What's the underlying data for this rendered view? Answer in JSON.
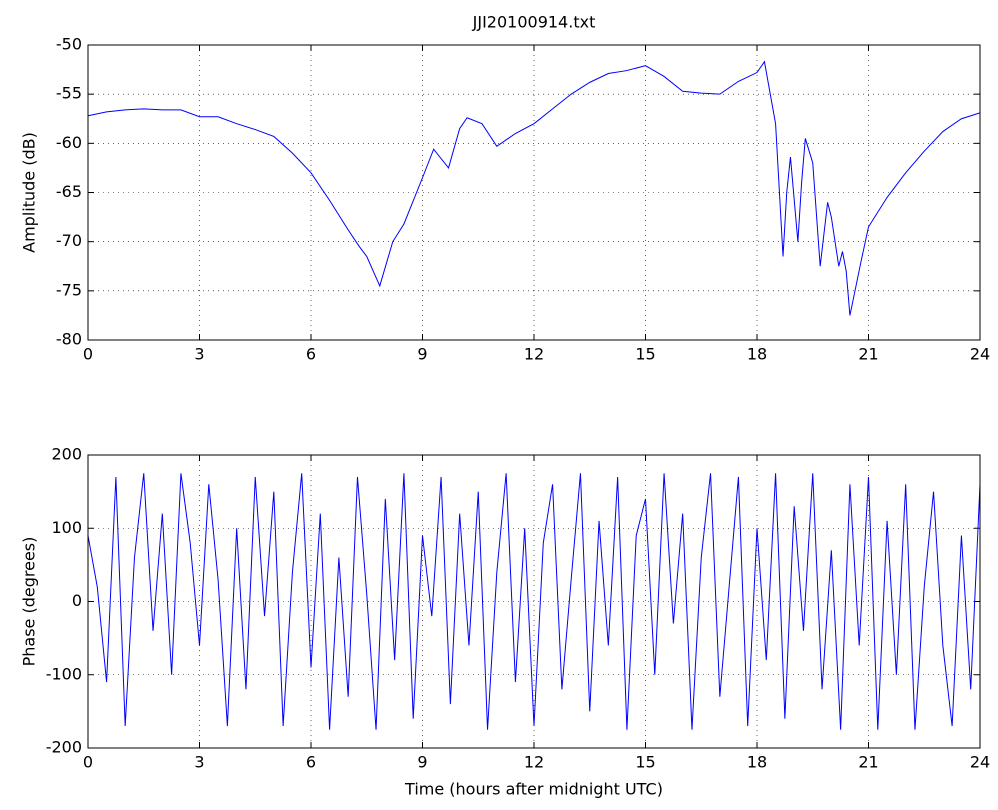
{
  "chart_data": [
    {
      "type": "line",
      "title": "JJI20100914.txt",
      "ylabel": "Amplitude (dB)",
      "grid": true,
      "xlim": [
        0,
        24
      ],
      "xticks": [
        0,
        3,
        6,
        9,
        12,
        15,
        18,
        21,
        24
      ],
      "ylim": [
        -80,
        -50
      ],
      "yticks": [
        -80,
        -75,
        -70,
        -65,
        -60,
        -55,
        -50
      ],
      "x": [
        0,
        0.5,
        1,
        1.5,
        2,
        2.5,
        3,
        3.5,
        4,
        4.5,
        5,
        5.5,
        6,
        6.5,
        7,
        7.3,
        7.5,
        7.85,
        8.2,
        8.5,
        9,
        9.3,
        9.7,
        10,
        10.2,
        10.6,
        11,
        11.5,
        12,
        12.5,
        13,
        13.5,
        14,
        14.5,
        15,
        15.5,
        16,
        16.5,
        17,
        17.5,
        18,
        18.2,
        18.5,
        18.7,
        18.8,
        18.9,
        19.1,
        19.2,
        19.3,
        19.5,
        19.7,
        19.9,
        20,
        20.2,
        20.3,
        20.4,
        20.5,
        20.8,
        21,
        21.5,
        22,
        22.5,
        23,
        23.5,
        24
      ],
      "series": [
        {
          "color": "#0000ff",
          "values": [
            -57.2,
            -56.8,
            -56.6,
            -56.5,
            -56.6,
            -56.6,
            -57.3,
            -57.3,
            -58,
            -58.6,
            -59.3,
            -61,
            -63,
            -65.8,
            -68.8,
            -70.5,
            -71.5,
            -74.5,
            -70,
            -68.2,
            -63.5,
            -60.6,
            -62.5,
            -58.5,
            -57.4,
            -58,
            -60.3,
            -59,
            -58,
            -56.5,
            -55,
            -53.8,
            -52.9,
            -52.6,
            -52.1,
            -53.2,
            -54.7,
            -54.9,
            -55,
            -53.7,
            -52.8,
            -51.7,
            -58,
            -71.5,
            -65,
            -61.4,
            -70,
            -64,
            -59.5,
            -62,
            -72.5,
            -66,
            -67.5,
            -72.5,
            -71,
            -73,
            -77.5,
            -72,
            -68.5,
            -65.5,
            -63,
            -60.8,
            -58.8,
            -57.5,
            -56.9
          ]
        }
      ]
    },
    {
      "type": "line",
      "xlabel": "Time (hours after midnight UTC)",
      "ylabel": "Phase (degrees)",
      "grid": true,
      "xlim": [
        0,
        24
      ],
      "xticks": [
        0,
        3,
        6,
        9,
        12,
        15,
        18,
        21,
        24
      ],
      "ylim": [
        -200,
        200
      ],
      "yticks": [
        -200,
        -100,
        0,
        100,
        200
      ],
      "x": [
        0,
        0.25,
        0.5,
        0.75,
        1,
        1.25,
        1.5,
        1.75,
        2,
        2.25,
        2.5,
        2.75,
        3,
        3.25,
        3.5,
        3.75,
        4,
        4.25,
        4.5,
        4.75,
        5,
        5.25,
        5.5,
        5.75,
        6,
        6.25,
        6.5,
        6.75,
        7,
        7.25,
        7.5,
        7.75,
        8,
        8.25,
        8.5,
        8.75,
        9,
        9.25,
        9.5,
        9.75,
        10,
        10.25,
        10.5,
        10.75,
        11,
        11.25,
        11.5,
        11.75,
        12,
        12.25,
        12.5,
        12.75,
        13,
        13.25,
        13.5,
        13.75,
        14,
        14.25,
        14.5,
        14.75,
        15,
        15.25,
        15.5,
        15.75,
        16,
        16.25,
        16.5,
        16.75,
        17,
        17.25,
        17.5,
        17.75,
        18,
        18.25,
        18.5,
        18.75,
        19,
        19.25,
        19.5,
        19.75,
        20,
        20.25,
        20.5,
        20.75,
        21,
        21.25,
        21.5,
        21.75,
        22,
        22.25,
        22.5,
        22.75,
        23,
        23.25,
        23.5,
        23.75,
        24
      ],
      "series": [
        {
          "color": "#0000ff",
          "values": [
            90,
            20,
            -110,
            170,
            -170,
            60,
            175,
            -40,
            120,
            -100,
            175,
            80,
            -60,
            160,
            30,
            -170,
            100,
            -120,
            170,
            -20,
            150,
            -170,
            40,
            175,
            -90,
            120,
            -175,
            60,
            -130,
            170,
            10,
            -175,
            140,
            -80,
            175,
            -160,
            90,
            -20,
            170,
            -140,
            120,
            -60,
            150,
            -175,
            40,
            175,
            -110,
            100,
            -170,
            80,
            160,
            -120,
            30,
            175,
            -150,
            110,
            -60,
            170,
            -175,
            90,
            140,
            -100,
            175,
            -30,
            120,
            -175,
            60,
            175,
            -130,
            20,
            170,
            -170,
            100,
            -80,
            175,
            -160,
            130,
            -40,
            175,
            -120,
            70,
            -175,
            160,
            -60,
            170,
            -175,
            110,
            -100,
            160,
            -175,
            20,
            150,
            -60,
            -170,
            90,
            -120,
            160
          ]
        }
      ]
    }
  ]
}
